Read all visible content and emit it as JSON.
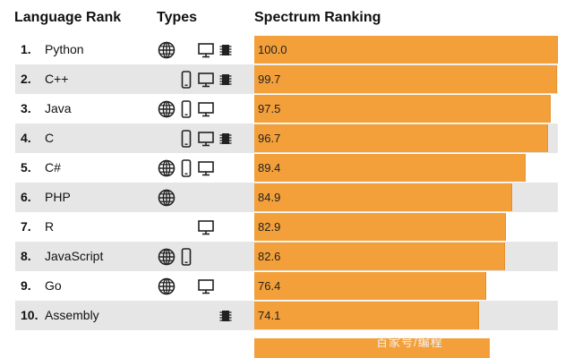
{
  "header": {
    "language_rank": "Language Rank",
    "types": "Types",
    "spectrum_ranking": "Spectrum Ranking"
  },
  "icon_legend": {
    "web": "globe-icon",
    "mobile": "mobile-phone-icon",
    "enterprise": "desktop-monitor-icon",
    "embedded": "chip-icon"
  },
  "colors": {
    "bar": "#f4a03a",
    "row_shade": "#e6e6e6"
  },
  "watermark": "百家号/编程",
  "chart_data": {
    "type": "bar",
    "orientation": "horizontal",
    "title": "",
    "xlabel": "",
    "ylabel": "",
    "xlim": [
      0,
      100
    ],
    "categories": [
      "Python",
      "C++",
      "Java",
      "C",
      "C#",
      "PHP",
      "R",
      "JavaScript",
      "Go",
      "Assembly"
    ],
    "values": [
      100.0,
      99.7,
      97.5,
      96.7,
      89.4,
      84.9,
      82.9,
      82.6,
      76.4,
      74.1
    ],
    "rows": [
      {
        "rank": "1.",
        "language": "Python",
        "score": "100.0",
        "types": {
          "web": true,
          "mobile": false,
          "enterprise": true,
          "embedded": true
        }
      },
      {
        "rank": "2.",
        "language": "C++",
        "score": "99.7",
        "types": {
          "web": false,
          "mobile": true,
          "enterprise": true,
          "embedded": true
        }
      },
      {
        "rank": "3.",
        "language": "Java",
        "score": "97.5",
        "types": {
          "web": true,
          "mobile": true,
          "enterprise": true,
          "embedded": false
        }
      },
      {
        "rank": "4.",
        "language": "C",
        "score": "96.7",
        "types": {
          "web": false,
          "mobile": true,
          "enterprise": true,
          "embedded": true
        }
      },
      {
        "rank": "5.",
        "language": "C#",
        "score": "89.4",
        "types": {
          "web": true,
          "mobile": true,
          "enterprise": true,
          "embedded": false
        }
      },
      {
        "rank": "6.",
        "language": "PHP",
        "score": "84.9",
        "types": {
          "web": true,
          "mobile": false,
          "enterprise": false,
          "embedded": false
        }
      },
      {
        "rank": "7.",
        "language": "R",
        "score": "82.9",
        "types": {
          "web": false,
          "mobile": false,
          "enterprise": true,
          "embedded": false
        }
      },
      {
        "rank": "8.",
        "language": "JavaScript",
        "score": "82.6",
        "types": {
          "web": true,
          "mobile": true,
          "enterprise": false,
          "embedded": false
        }
      },
      {
        "rank": "9.",
        "language": "Go",
        "score": "76.4",
        "types": {
          "web": true,
          "mobile": false,
          "enterprise": true,
          "embedded": false
        }
      },
      {
        "rank": "10.",
        "language": "Assembly",
        "score": "74.1",
        "types": {
          "web": false,
          "mobile": false,
          "enterprise": false,
          "embedded": true
        }
      }
    ]
  }
}
